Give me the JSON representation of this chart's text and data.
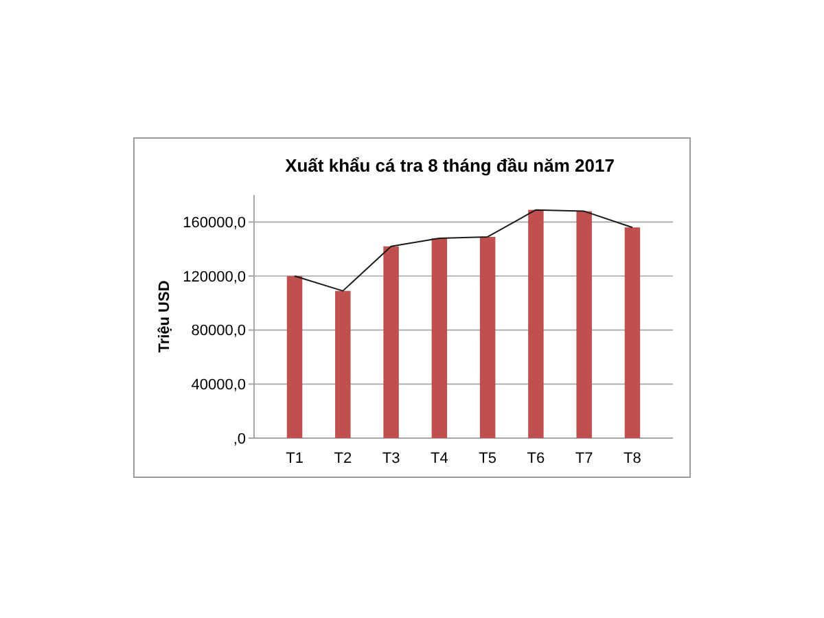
{
  "chart_data": {
    "type": "bar",
    "title": "Xuất khẩu cá tra 8 tháng đầu năm 2017",
    "ylabel": "Triệu USD",
    "categories": [
      "T1",
      "T2",
      "T3",
      "T4",
      "T5",
      "T6",
      "T7",
      "T8"
    ],
    "series": [
      {
        "color": "#c0504d",
        "values": [
          120000,
          109000,
          142000,
          148000,
          149000,
          169000,
          168000,
          156000
        ]
      },
      {
        "type": "line",
        "color": "#1a1a1a",
        "values": [
          120000,
          109000,
          142000,
          148000,
          149000,
          169000,
          168000,
          156000
        ]
      }
    ],
    "ylim": [
      0,
      180000
    ],
    "yticks": [
      {
        "value": 0,
        "label": ",0"
      },
      {
        "value": 40000,
        "label": "40000,0"
      },
      {
        "value": 80000,
        "label": "80000,0"
      },
      {
        "value": 120000,
        "label": "120000,0"
      },
      {
        "value": 160000,
        "label": "160000,0"
      }
    ],
    "grid": "y",
    "marker": "none",
    "line_style": "solid"
  }
}
